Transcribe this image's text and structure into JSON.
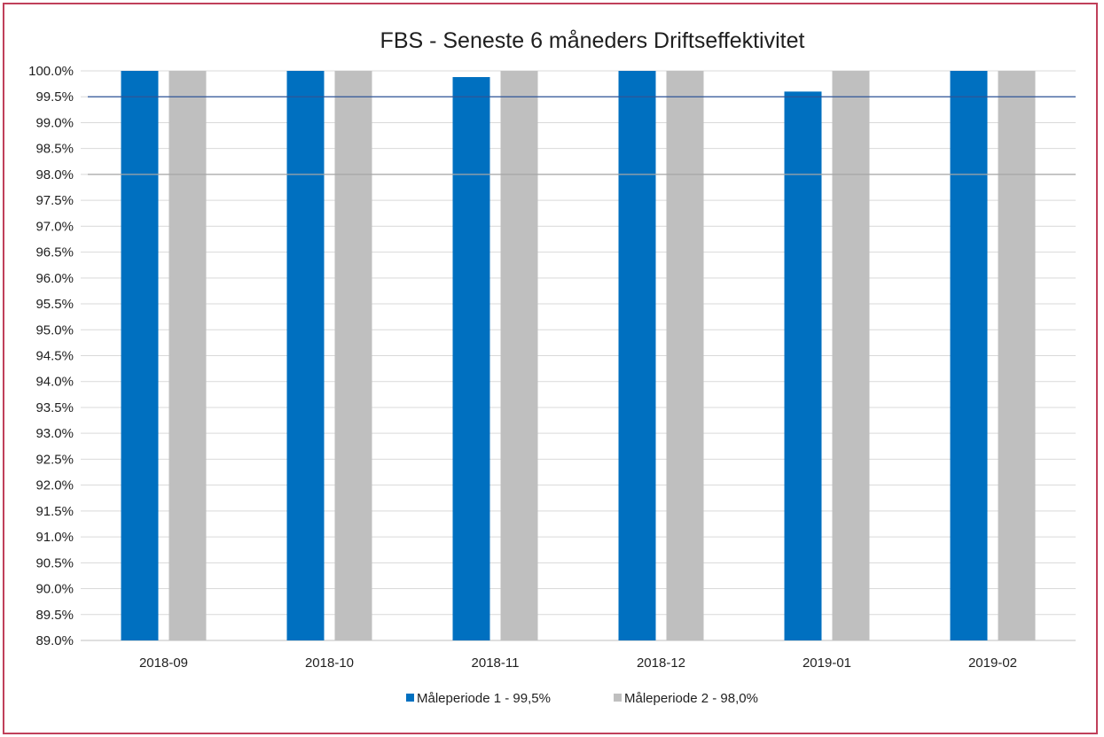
{
  "chart_data": {
    "type": "bar",
    "title": "FBS - Seneste 6 måneders Driftseffektivitet",
    "categories": [
      "2018-09",
      "2018-10",
      "2018-11",
      "2018-12",
      "2019-01",
      "2019-02"
    ],
    "series": [
      {
        "name": "Måleperiode 1 - 99,5%",
        "values": [
          100.0,
          100.0,
          99.88,
          100.0,
          99.6,
          100.0
        ],
        "color": "#0070c0"
      },
      {
        "name": "Måleperiode 2 - 98,0%",
        "values": [
          100.0,
          100.0,
          100.0,
          100.0,
          100.0,
          100.0
        ],
        "color": "#bfbfbf"
      }
    ],
    "reference_lines": [
      {
        "value": 99.5,
        "color": "#2f5597"
      },
      {
        "value": 98.0,
        "color": "#a6a6a6"
      }
    ],
    "ylim": [
      89.0,
      100.0
    ],
    "ytick_step": 0.5,
    "ytick_format_suffix": "%",
    "grid": true,
    "legend_position": "bottom",
    "gridline_color": "#d9d9d9",
    "axis_color": "#bfbfbf"
  }
}
